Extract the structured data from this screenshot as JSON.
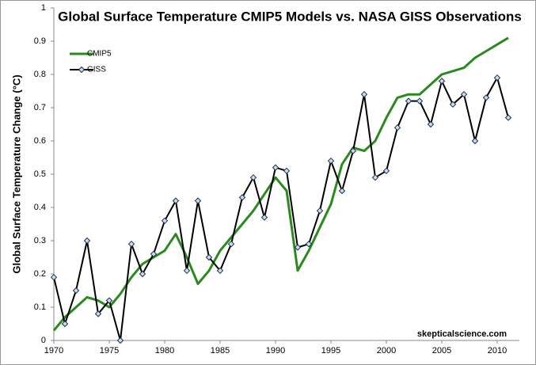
{
  "chart_data": {
    "type": "line",
    "title": "Global Surface Temperature CMIP5 Models vs. NASA GISS Observations",
    "y_label": "Global Surface Temperature Change (°C)",
    "annotation": "skepticalscience.com",
    "x": [
      1970,
      1971,
      1972,
      1973,
      1974,
      1975,
      1976,
      1977,
      1978,
      1979,
      1980,
      1981,
      1982,
      1983,
      1984,
      1985,
      1986,
      1987,
      1988,
      1989,
      1990,
      1991,
      1992,
      1993,
      1994,
      1995,
      1996,
      1997,
      1998,
      1999,
      2000,
      2001,
      2002,
      2003,
      2004,
      2005,
      2006,
      2007,
      2008,
      2009,
      2010,
      2011
    ],
    "series": [
      {
        "name": "CMIP5",
        "color": "#2a8a1e",
        "markers": false,
        "values": [
          0.03,
          0.07,
          0.1,
          0.13,
          0.12,
          0.1,
          0.14,
          0.19,
          0.23,
          0.25,
          0.27,
          0.32,
          0.25,
          0.17,
          0.21,
          0.27,
          0.31,
          0.35,
          0.39,
          0.44,
          0.49,
          0.45,
          0.21,
          0.27,
          0.34,
          0.41,
          0.53,
          0.58,
          0.57,
          0.6,
          0.67,
          0.73,
          0.74,
          0.74,
          0.77,
          0.8,
          0.81,
          0.82,
          0.85,
          0.87,
          0.89,
          0.91
        ]
      },
      {
        "name": "GISS",
        "color": "#000000",
        "markers": true,
        "values": [
          0.19,
          0.05,
          0.15,
          0.3,
          0.08,
          0.12,
          0.0,
          0.29,
          0.2,
          0.26,
          0.36,
          0.42,
          0.21,
          0.42,
          0.25,
          0.21,
          0.29,
          0.43,
          0.49,
          0.37,
          0.52,
          0.51,
          0.28,
          0.29,
          0.39,
          0.54,
          0.45,
          0.57,
          0.74,
          0.49,
          0.51,
          0.64,
          0.72,
          0.72,
          0.65,
          0.78,
          0.71,
          0.74,
          0.6,
          0.73,
          0.79,
          0.67
        ]
      }
    ],
    "xlim": [
      1970,
      2012
    ],
    "xticks": [
      1970,
      1975,
      1980,
      1985,
      1990,
      1995,
      2000,
      2005,
      2010
    ],
    "ylim": [
      0,
      1
    ],
    "yticks": [
      0,
      0.1,
      0.2,
      0.3,
      0.4,
      0.5,
      0.6,
      0.7,
      0.8,
      0.9,
      1
    ],
    "legend": "upper left",
    "grid": false
  }
}
